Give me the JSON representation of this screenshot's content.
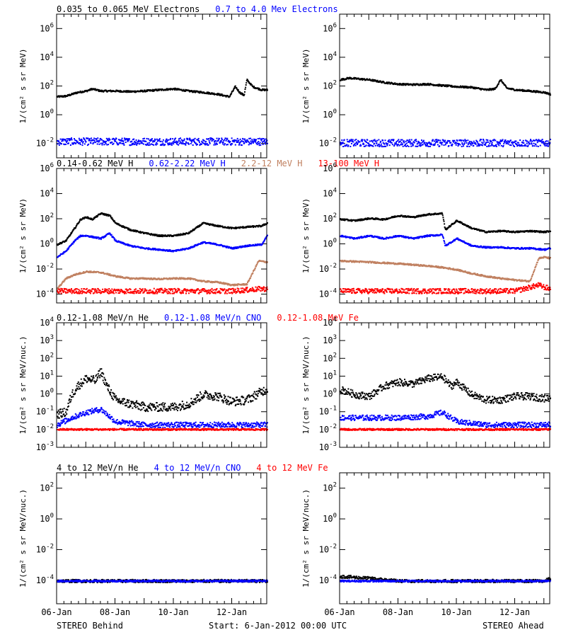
{
  "figure": {
    "footer": {
      "left": "STEREO Behind",
      "center": "Start:  6-Jan-2012 00:00 UTC",
      "right": "STEREO Ahead"
    },
    "x_tick_labels": [
      "06-Jan",
      "08-Jan",
      "10-Jan",
      "12-Jan"
    ]
  },
  "colors": {
    "black": "#000000",
    "blue": "#0000ff",
    "tan": "#c08060",
    "red": "#ff0000",
    "red_dark": "#d00000",
    "background": "#ffffff"
  },
  "chart_data": [
    {
      "id": "electrons",
      "type": "scatter",
      "ylabel": "1/(cm² s sr MeV)",
      "yscale": "log",
      "ylim": [
        0.001,
        10000000
      ],
      "ytick_exponents": [
        6,
        4,
        2,
        0,
        -2
      ],
      "xlim": [
        "2012-01-06",
        "2012-01-13.2"
      ],
      "legend": [
        {
          "text": "0.035 to 0.065 MeV Electrons",
          "color": "black"
        },
        {
          "text": "0.7 to 4.0 Mev Electrons",
          "color": "blue"
        }
      ],
      "panels": [
        {
          "spacecraft": "STEREO Behind",
          "series": [
            {
              "color": "black",
              "x_days": [
                0,
                0.3,
                0.7,
                1,
                1.2,
                1.5,
                2,
                2.5,
                3,
                3.5,
                4,
                4.5,
                5,
                5.5,
                5.9,
                6.1,
                6.25,
                6.4,
                6.5,
                6.7,
                7,
                7.2
              ],
              "values": [
                20,
                22,
                40,
                50,
                70,
                50,
                50,
                45,
                50,
                60,
                70,
                50,
                40,
                30,
                20,
                100,
                40,
                25,
                300,
                100,
                60,
                60
              ]
            },
            {
              "color": "blue",
              "x_days": [
                0,
                1,
                2,
                3,
                4,
                5,
                6,
                7,
                7.2
              ],
              "values": [
                0.015,
                0.015,
                0.015,
                0.015,
                0.015,
                0.015,
                0.015,
                0.015,
                0.015
              ],
              "scatter": 0.5
            }
          ]
        },
        {
          "spacecraft": "STEREO Ahead",
          "series": [
            {
              "color": "black",
              "x_days": [
                0,
                0.3,
                1,
                1.5,
                2,
                2.5,
                3,
                3.5,
                4,
                4.5,
                5,
                5.3,
                5.5,
                5.7,
                6,
                6.5,
                7,
                7.2
              ],
              "values": [
                300,
                400,
                300,
                200,
                150,
                140,
                150,
                120,
                100,
                90,
                60,
                70,
                300,
                80,
                60,
                50,
                40,
                30
              ]
            },
            {
              "color": "blue",
              "x_days": [
                0,
                1,
                2,
                3,
                4,
                5,
                6,
                7,
                7.2
              ],
              "values": [
                0.012,
                0.012,
                0.012,
                0.012,
                0.012,
                0.012,
                0.012,
                0.012,
                0.012
              ],
              "scatter": 0.5
            }
          ]
        }
      ]
    },
    {
      "id": "protons",
      "type": "scatter",
      "ylabel": "1/(cm² s sr MeV)",
      "yscale": "log",
      "ylim": [
        2e-05,
        1000000
      ],
      "ytick_exponents": [
        6,
        4,
        2,
        0,
        -2,
        -4
      ],
      "xlim": [
        "2012-01-06",
        "2012-01-13.2"
      ],
      "legend": [
        {
          "text": "0.14-0.62 MeV H",
          "color": "black"
        },
        {
          "text": "0.62-2.22 MeV H",
          "color": "blue"
        },
        {
          "text": "2.2-12 MeV H",
          "color": "tan"
        },
        {
          "text": "13-100 MeV H",
          "color": "red"
        }
      ],
      "panels": [
        {
          "spacecraft": "STEREO Behind",
          "series": [
            {
              "color": "black",
              "x_days": [
                0,
                0.3,
                0.6,
                0.8,
                1,
                1.2,
                1.5,
                1.8,
                2,
                2.5,
                3,
                3.5,
                4,
                4.5,
                5,
                5.5,
                6,
                6.5,
                7,
                7.2
              ],
              "values": [
                1,
                2,
                20,
                100,
                150,
                100,
                300,
                200,
                50,
                15,
                8,
                5,
                5,
                8,
                50,
                30,
                20,
                25,
                30,
                50
              ]
            },
            {
              "color": "blue",
              "x_days": [
                0,
                0.3,
                0.6,
                0.8,
                1,
                1.5,
                1.8,
                2,
                2.5,
                3,
                3.5,
                4,
                4.5,
                5,
                5.5,
                6,
                6.5,
                7,
                7.2
              ],
              "values": [
                0.1,
                0.3,
                2,
                5,
                5,
                3,
                8,
                2,
                0.8,
                0.5,
                0.4,
                0.3,
                0.5,
                1.5,
                1,
                0.5,
                0.8,
                1,
                5
              ]
            },
            {
              "color": "tan",
              "x_days": [
                0,
                0.3,
                0.6,
                1,
                1.5,
                2,
                2.5,
                3,
                3.5,
                4,
                4.5,
                5,
                5.5,
                6,
                6.5,
                6.9,
                7.2
              ],
              "values": [
                0.0003,
                0.002,
                0.004,
                0.007,
                0.006,
                0.003,
                0.002,
                0.002,
                0.0018,
                0.002,
                0.002,
                0.0012,
                0.001,
                0.0006,
                0.0007,
                0.05,
                0.04
              ]
            },
            {
              "color": "red",
              "x_days": [
                0,
                1,
                2,
                3,
                4,
                5,
                6,
                7,
                7.2
              ],
              "values": [
                0.0002,
                0.0002,
                0.0002,
                0.0002,
                0.0002,
                0.0002,
                0.0002,
                0.0003,
                0.0003
              ],
              "scatter": 0.4
            }
          ]
        },
        {
          "spacecraft": "STEREO Ahead",
          "series": [
            {
              "color": "black",
              "x_days": [
                0,
                0.5,
                1,
                1.5,
                2,
                2.5,
                3,
                3.5,
                3.6,
                4,
                4.5,
                5,
                5.5,
                6,
                6.5,
                7,
                7.2
              ],
              "values": [
                100,
                80,
                120,
                100,
                200,
                150,
                250,
                300,
                15,
                80,
                20,
                10,
                12,
                10,
                12,
                10,
                12
              ]
            },
            {
              "color": "blue",
              "x_days": [
                0,
                0.5,
                1,
                1.5,
                2,
                2.5,
                3,
                3.5,
                3.6,
                4,
                4.5,
                5,
                5.5,
                6,
                6.5,
                7,
                7.2
              ],
              "values": [
                5,
                3,
                5,
                3,
                5,
                3,
                5,
                6,
                0.8,
                3,
                0.8,
                0.6,
                0.6,
                0.5,
                0.5,
                0.4,
                0.5
              ]
            },
            {
              "color": "tan",
              "x_days": [
                0,
                1,
                2,
                3,
                3.5,
                4,
                4.5,
                5,
                5.5,
                6,
                6.5,
                6.8,
                7,
                7.2
              ],
              "values": [
                0.05,
                0.04,
                0.03,
                0.02,
                0.015,
                0.01,
                0.005,
                0.003,
                0.002,
                0.0015,
                0.0012,
                0.08,
                0.1,
                0.08
              ]
            },
            {
              "color": "red",
              "x_days": [
                0,
                1,
                2,
                3,
                4,
                5,
                6,
                6.8,
                7,
                7.2
              ],
              "values": [
                0.0002,
                0.0002,
                0.0002,
                0.0002,
                0.0002,
                0.0002,
                0.0002,
                0.0006,
                0.0004,
                0.0003
              ],
              "scatter": 0.4
            }
          ]
        }
      ]
    },
    {
      "id": "heavy-ions-low",
      "type": "scatter",
      "ylabel": "1/(cm² s sr MeV/nuc.)",
      "yscale": "log",
      "ylim": [
        0.001,
        10000
      ],
      "ytick_exponents": [
        4,
        3,
        2,
        1,
        0,
        -1,
        -2,
        -3
      ],
      "xlim": [
        "2012-01-06",
        "2012-01-13.2"
      ],
      "legend": [
        {
          "text": "0.12-1.08 MeV/n He",
          "color": "black"
        },
        {
          "text": "0.12-1.08 MeV/n CNO",
          "color": "blue"
        },
        {
          "text": "0.12-1.08 MeV Fe",
          "color": "red"
        }
      ],
      "panels": [
        {
          "spacecraft": "STEREO Behind",
          "series": [
            {
              "color": "black",
              "x_days": [
                0,
                0.3,
                0.5,
                0.7,
                1,
                1.3,
                1.5,
                1.7,
                2,
                2.5,
                3,
                3.5,
                4,
                4.5,
                5,
                5.5,
                6,
                6.5,
                7,
                7.2
              ],
              "values": [
                0.08,
                0.1,
                1,
                3,
                8,
                6,
                20,
                3,
                0.5,
                0.3,
                0.2,
                0.2,
                0.2,
                0.3,
                1,
                0.8,
                0.4,
                0.5,
                1.5,
                2
              ],
              "scatter": 0.5
            },
            {
              "color": "blue",
              "x_days": [
                0,
                0.5,
                1,
                1.5,
                2,
                3,
                4,
                5,
                6,
                7,
                7.2
              ],
              "values": [
                0.02,
                0.05,
                0.1,
                0.15,
                0.03,
                0.02,
                0.02,
                0.02,
                0.02,
                0.02,
                0.02
              ],
              "scatter": 0.3
            },
            {
              "color": "red",
              "x_days": [
                0,
                1,
                2,
                3,
                4,
                5,
                6,
                7,
                7.2
              ],
              "values": [
                0.011,
                0.011,
                0.011,
                0.011,
                0.011,
                0.011,
                0.011,
                0.011,
                0.011
              ],
              "scatter": 0.1
            }
          ]
        },
        {
          "spacecraft": "STEREO Ahead",
          "series": [
            {
              "color": "black",
              "x_days": [
                0,
                0.5,
                1,
                1.5,
                2,
                2.5,
                3,
                3.5,
                3.8,
                4,
                4.5,
                5,
                5.5,
                6,
                6.5,
                7,
                7.2
              ],
              "values": [
                2,
                1,
                0.8,
                3,
                5,
                4,
                8,
                10,
                3,
                5,
                1,
                0.5,
                0.5,
                0.8,
                0.8,
                0.6,
                0.7
              ],
              "scatter": 0.4
            },
            {
              "color": "blue",
              "x_days": [
                0,
                1,
                2,
                3,
                3.5,
                4,
                5,
                6,
                7,
                7.2
              ],
              "values": [
                0.05,
                0.05,
                0.05,
                0.06,
                0.1,
                0.03,
                0.02,
                0.02,
                0.02,
                0.02
              ],
              "scatter": 0.3
            },
            {
              "color": "red",
              "x_days": [
                0,
                1,
                2,
                3,
                4,
                5,
                6,
                7,
                7.2
              ],
              "values": [
                0.011,
                0.011,
                0.011,
                0.011,
                0.011,
                0.011,
                0.011,
                0.011,
                0.011
              ],
              "scatter": 0.1
            }
          ]
        }
      ]
    },
    {
      "id": "heavy-ions-high",
      "type": "scatter",
      "ylabel": "1/(cm² s sr MeV/nuc.)",
      "yscale": "log",
      "ylim": [
        3e-06,
        1000
      ],
      "ytick_exponents": [
        2,
        0,
        -2,
        -4
      ],
      "xlim": [
        "2012-01-06",
        "2012-01-13.2"
      ],
      "legend": [
        {
          "text": "4 to 12 MeV/n He",
          "color": "black"
        },
        {
          "text": "4 to 12 MeV/n CNO",
          "color": "blue"
        },
        {
          "text": "4 to 12 MeV Fe",
          "color": "red"
        }
      ],
      "panels": [
        {
          "spacecraft": "STEREO Behind",
          "series": [
            {
              "color": "black",
              "x_days": [
                0,
                1,
                2,
                3,
                4,
                5,
                6,
                7,
                7.2
              ],
              "values": [
                0.0001,
                0.0001,
                0.0001,
                0.0001,
                0.0001,
                0.0001,
                0.0001,
                0.0001,
                0.0001
              ],
              "scatter": 0.2
            },
            {
              "color": "blue",
              "x_days": [
                0,
                7.2
              ],
              "values": [
                0.0001,
                0.0001
              ]
            }
          ]
        },
        {
          "spacecraft": "STEREO Ahead",
          "series": [
            {
              "color": "black",
              "x_days": [
                0,
                1,
                2,
                3,
                4,
                5,
                6,
                7,
                7.2
              ],
              "values": [
                0.0002,
                0.00015,
                0.0001,
                0.0001,
                0.0001,
                0.0001,
                0.0001,
                0.0001,
                0.00015
              ],
              "scatter": 0.2
            },
            {
              "color": "blue",
              "x_days": [
                0,
                7.2
              ],
              "values": [
                0.0001,
                0.0001
              ]
            }
          ]
        }
      ]
    }
  ]
}
